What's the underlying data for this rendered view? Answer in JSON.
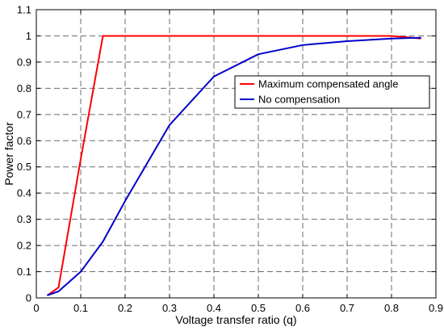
{
  "chart_data": {
    "type": "line",
    "title": "",
    "xlabel": "Voltage transfer ratio (q)",
    "ylabel": "Power factor",
    "xlim": [
      0,
      0.9
    ],
    "ylim": [
      0,
      1.1
    ],
    "xticks": [
      "0",
      "0.1",
      "0.2",
      "0.3",
      "0.4",
      "0.5",
      "0.6",
      "0.7",
      "0.8",
      "0.9"
    ],
    "yticks": [
      "0",
      "0.1",
      "0.2",
      "0.3",
      "0.4",
      "0.5",
      "0.6",
      "0.7",
      "0.8",
      "0.9",
      "1",
      "1.1"
    ],
    "grid": true,
    "legend_position": "top-right",
    "series": [
      {
        "name": "Maximum compensated angle",
        "color": "#ff0000",
        "x": [
          0.025,
          0.05,
          0.1,
          0.15,
          0.2,
          0.3,
          0.4,
          0.5,
          0.6,
          0.7,
          0.8,
          0.866
        ],
        "y": [
          0.01,
          0.04,
          0.53,
          1.0,
          1.0,
          1.0,
          1.0,
          1.0,
          1.0,
          1.0,
          1.0,
          0.99
        ]
      },
      {
        "name": "No compensation",
        "color": "#0000cc",
        "x": [
          0.025,
          0.05,
          0.1,
          0.15,
          0.2,
          0.3,
          0.4,
          0.5,
          0.6,
          0.7,
          0.8,
          0.866
        ],
        "y": [
          0.01,
          0.025,
          0.1,
          0.215,
          0.37,
          0.66,
          0.845,
          0.93,
          0.965,
          0.98,
          0.99,
          0.993
        ]
      }
    ]
  }
}
